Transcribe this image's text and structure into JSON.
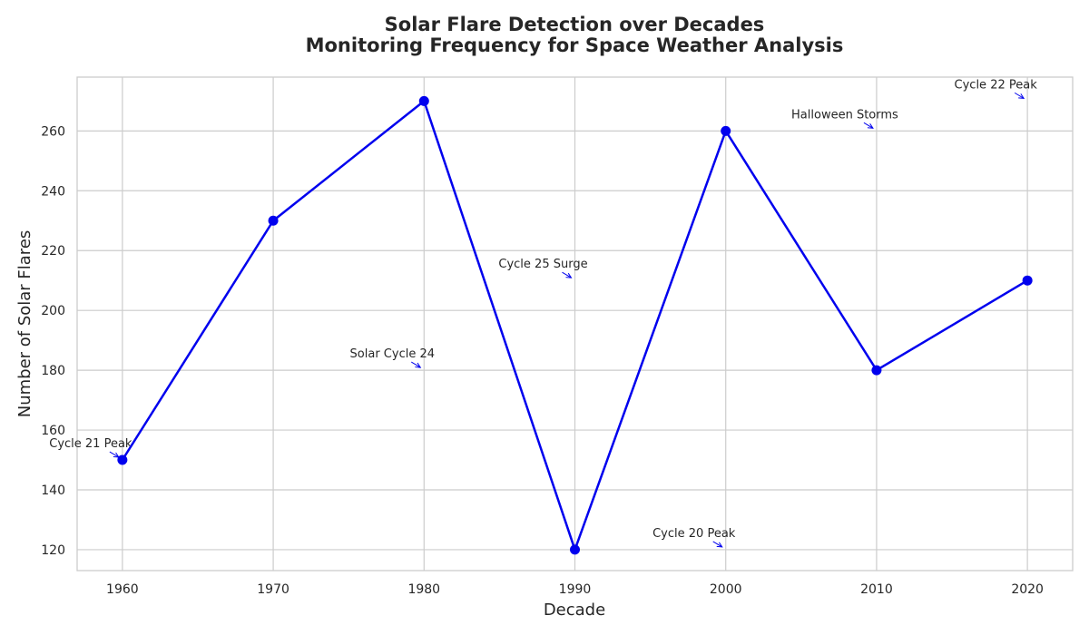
{
  "chart_data": {
    "type": "line",
    "title_line1": "Solar Flare Detection over Decades",
    "title_line2": "Monitoring Frequency for Space Weather Analysis",
    "xlabel": "Decade",
    "ylabel": "Number of Solar Flares",
    "x": [
      1960,
      1970,
      1980,
      1990,
      2000,
      2010,
      2020
    ],
    "y": [
      150,
      230,
      270,
      120,
      260,
      180,
      210
    ],
    "xlim": [
      1957,
      2023
    ],
    "ylim": [
      113,
      278
    ],
    "xticks": [
      1960,
      1970,
      1980,
      1990,
      2000,
      2010,
      2020
    ],
    "yticks": [
      120,
      140,
      160,
      180,
      200,
      220,
      240,
      260
    ],
    "grid": true,
    "line_color": "#0000ee",
    "annotations": [
      {
        "text": "Cycle 21 Peak",
        "x": 1960,
        "y": 150
      },
      {
        "text": "Solar Cycle 24",
        "x": 1980,
        "y": 180
      },
      {
        "text": "Cycle 25 Surge",
        "x": 1990,
        "y": 210
      },
      {
        "text": "Cycle 20 Peak",
        "x": 2000,
        "y": 120
      },
      {
        "text": "Halloween Storms",
        "x": 2010,
        "y": 260
      },
      {
        "text": "Cycle 22 Peak",
        "x": 2020,
        "y": 270
      }
    ]
  }
}
